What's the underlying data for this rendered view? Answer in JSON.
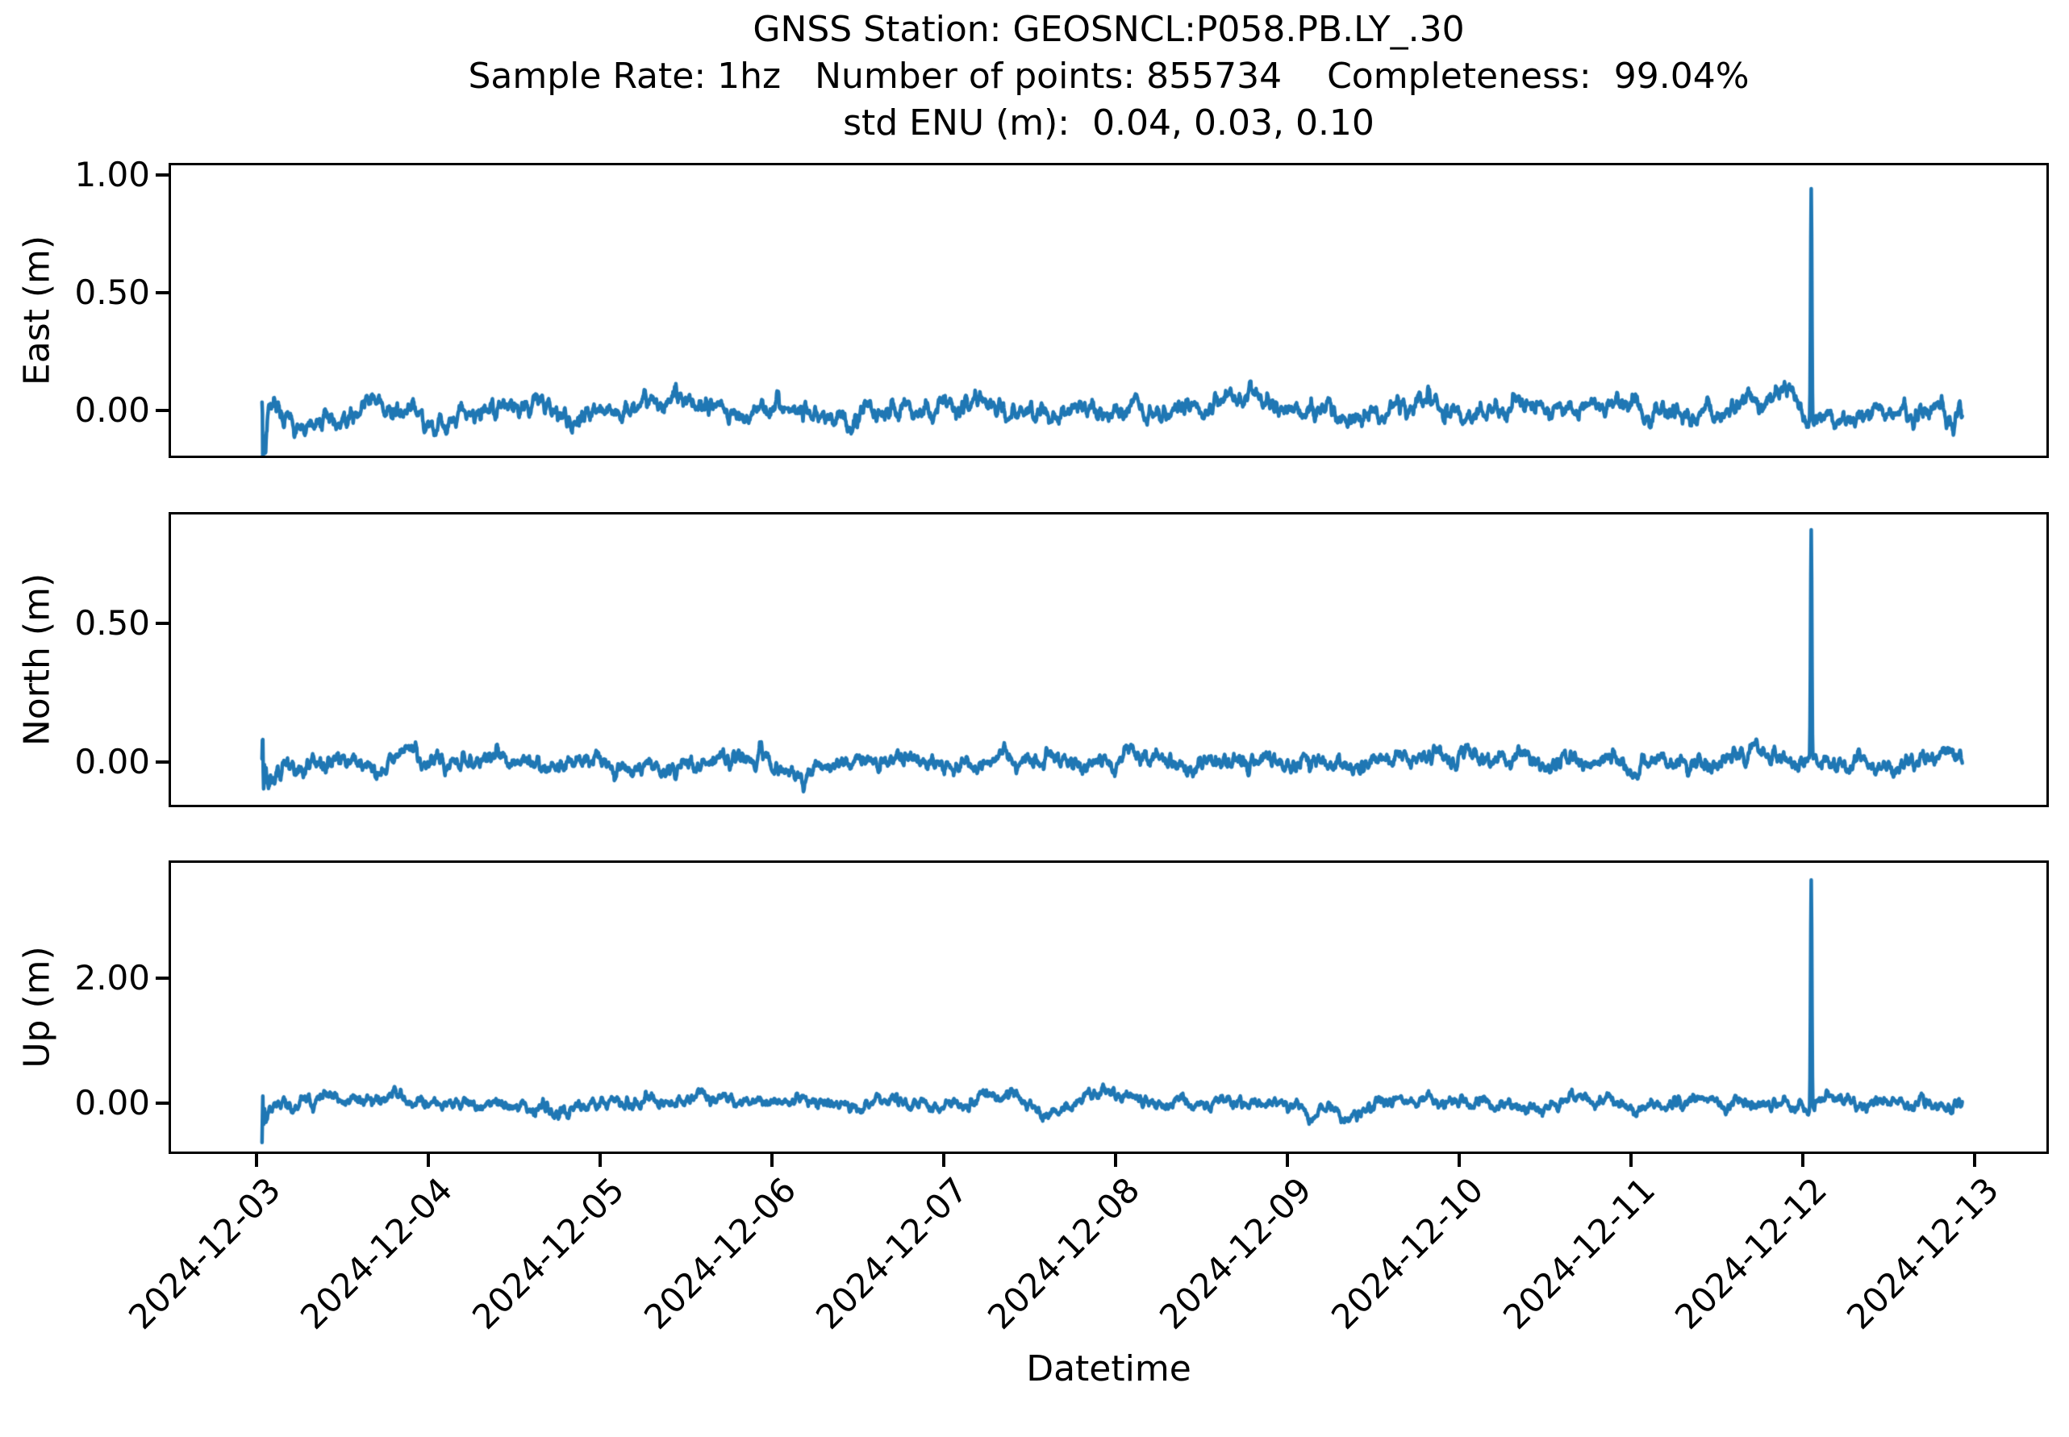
{
  "chart_data": {
    "type": "line",
    "title": "GNSS Station: GEOSNCL:P058.PB.LY_.30",
    "subtitle": "Sample Rate: 1hz   Number of points: 855734    Completeness:  99.04%",
    "subtitle2": "std ENU (m):  0.04, 0.03, 0.10",
    "xlabel": "Datetime",
    "sample_rate": "1hz",
    "num_points": 855734,
    "completeness_pct": 99.04,
    "std_enu_m": [
      0.04,
      0.03,
      0.1
    ],
    "line_color": "#1f77b4",
    "grid": false,
    "legend": "none",
    "x_tick_labels": [
      "2024-12-03",
      "2024-12-04",
      "2024-12-05",
      "2024-12-06",
      "2024-12-07",
      "2024-12-08",
      "2024-12-09",
      "2024-12-10",
      "2024-12-11",
      "2024-12-12",
      "2024-12-13"
    ],
    "x_range_days": [
      -0.5,
      10.42
    ],
    "data_span_days": [
      0.03,
      9.93
    ],
    "spike": {
      "time_day": 9.05,
      "near_date": "2024-12-12"
    },
    "subplots": [
      {
        "ylabel": "East (m)",
        "ylim": [
          -0.192,
          1.041
        ],
        "yticks": [
          {
            "v": 0.0,
            "label": "0.00"
          },
          {
            "v": 0.5,
            "label": "0.50"
          },
          {
            "v": 1.0,
            "label": "1.00"
          }
        ],
        "baseline": 0.0,
        "noise_std": 0.04,
        "spike_peak": 0.98,
        "seed": 11
      },
      {
        "ylabel": "North (m)",
        "ylim": [
          -0.154,
          0.892
        ],
        "yticks": [
          {
            "v": 0.0,
            "label": "0.00"
          },
          {
            "v": 0.5,
            "label": "0.50"
          }
        ],
        "baseline": 0.0,
        "noise_std": 0.03,
        "spike_peak": 0.85,
        "seed": 27
      },
      {
        "ylabel": "Up (m)",
        "ylim": [
          -0.774,
          3.845
        ],
        "yticks": [
          {
            "v": 0.0,
            "label": "0.00"
          },
          {
            "v": 2.0,
            "label": "2.00"
          }
        ],
        "baseline": 0.0,
        "noise_std": 0.1,
        "spike_peak": 3.65,
        "seed": 42
      }
    ]
  }
}
